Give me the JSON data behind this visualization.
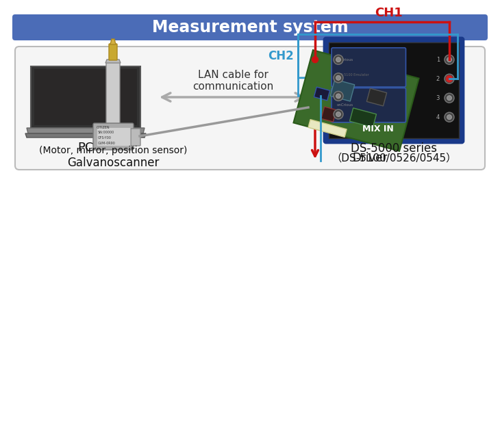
{
  "title": "Measurement system",
  "title_bg_color": "#4b6cb7",
  "title_text_color": "#ffffff",
  "bg_color": "#ffffff",
  "pc_label": "PC",
  "lan_label": "LAN cable for\ncommunication",
  "ds_label_line1": "DS-5000 series",
  "ds_label_line2": "（DS-5100/0526/0545）",
  "galvano_label_line1": "Galvanoscanner",
  "galvano_label_line2": "(Motor, mirror, position sensor)",
  "driver_label": "Driver",
  "ch1_label": "CH1",
  "ch2_label": "CH2",
  "mix_in_label": "MIX IN",
  "ch1_color": "#cc1111",
  "ch2_color": "#3399cc",
  "arrow_gray": "#aaaaaa",
  "line_gray": "#888888",
  "bottom_box_fill": "#f5f5f5",
  "bottom_box_edge": "#bbbbbb"
}
